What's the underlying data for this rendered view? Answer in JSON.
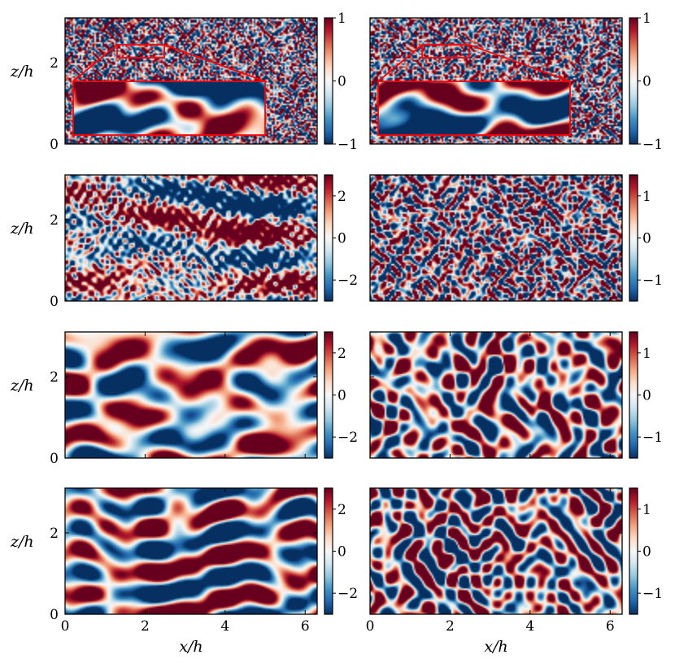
{
  "figure": {
    "ylabel": "z/h",
    "xlabel": "x/h",
    "x_ticks": [
      "0",
      "2",
      "4",
      "6"
    ],
    "z_ticks": [
      "0",
      "2"
    ],
    "cmap_colors": [
      "#053061",
      "#2166ac",
      "#4393c3",
      "#92c5de",
      "#d1e5f0",
      "#f7f7f7",
      "#fddbc7",
      "#f4a582",
      "#d6604d",
      "#b2182b",
      "#67001f"
    ],
    "inset_color": "#ff0000"
  },
  "chart_data": [
    {
      "type": "heatmap",
      "row": 1,
      "col": 1,
      "xlabel": "",
      "ylabel": "z/h",
      "xlim": [
        0,
        6.3
      ],
      "ylim": [
        0,
        3.1
      ],
      "x_ticks": [
        0,
        2,
        4,
        6
      ],
      "y_ticks": [
        0,
        2
      ],
      "clim": [
        -1,
        1
      ],
      "colorbar_ticks": [
        {
          "v": 1,
          "label": "1"
        },
        {
          "v": 0,
          "label": "0"
        },
        {
          "v": -1,
          "label": "−1"
        }
      ],
      "field": "fine-scale",
      "inset": true
    },
    {
      "type": "heatmap",
      "row": 1,
      "col": 2,
      "xlabel": "",
      "ylabel": "",
      "xlim": [
        0,
        6.3
      ],
      "ylim": [
        0,
        3.1
      ],
      "x_ticks": [
        0,
        2,
        4,
        6
      ],
      "y_ticks": [
        0,
        2
      ],
      "clim": [
        -1,
        1
      ],
      "colorbar_ticks": [
        {
          "v": 1,
          "label": "1"
        },
        {
          "v": 0,
          "label": "0"
        },
        {
          "v": -1,
          "label": "−1"
        }
      ],
      "field": "fine-scale",
      "inset": true
    },
    {
      "type": "heatmap",
      "row": 2,
      "col": 1,
      "xlabel": "",
      "ylabel": "z/h",
      "xlim": [
        0,
        6.3
      ],
      "ylim": [
        0,
        3.1
      ],
      "x_ticks": [
        0,
        2,
        4,
        6
      ],
      "y_ticks": [
        0,
        2
      ],
      "clim": [
        -3,
        3
      ],
      "colorbar_ticks": [
        {
          "v": 2,
          "label": "2"
        },
        {
          "v": 0,
          "label": "0"
        },
        {
          "v": -2,
          "label": "−2"
        }
      ],
      "field": "large-scale streaks"
    },
    {
      "type": "heatmap",
      "row": 2,
      "col": 2,
      "xlabel": "",
      "ylabel": "",
      "xlim": [
        0,
        6.3
      ],
      "ylim": [
        0,
        3.1
      ],
      "x_ticks": [
        0,
        2,
        4,
        6
      ],
      "y_ticks": [
        0,
        2
      ],
      "clim": [
        -1.5,
        1.5
      ],
      "colorbar_ticks": [
        {
          "v": 1,
          "label": "1"
        },
        {
          "v": 0,
          "label": "0"
        },
        {
          "v": -1,
          "label": "−1"
        }
      ],
      "field": "small-scale"
    },
    {
      "type": "heatmap",
      "row": 3,
      "col": 1,
      "xlabel": "",
      "ylabel": "z/h",
      "xlim": [
        0,
        6.3
      ],
      "ylim": [
        0,
        3.1
      ],
      "x_ticks": [
        0,
        2,
        4,
        6
      ],
      "y_ticks": [
        0,
        2
      ],
      "clim": [
        -3,
        3
      ],
      "colorbar_ticks": [
        {
          "v": 2,
          "label": "2"
        },
        {
          "v": 0,
          "label": "0"
        },
        {
          "v": -2,
          "label": "−2"
        }
      ],
      "field": "large-scale smooth"
    },
    {
      "type": "heatmap",
      "row": 3,
      "col": 2,
      "xlabel": "",
      "ylabel": "",
      "xlim": [
        0,
        6.3
      ],
      "ylim": [
        0,
        3.1
      ],
      "x_ticks": [
        0,
        2,
        4,
        6
      ],
      "y_ticks": [
        0,
        2
      ],
      "clim": [
        -1.5,
        1.5
      ],
      "colorbar_ticks": [
        {
          "v": 1,
          "label": "1"
        },
        {
          "v": 0,
          "label": "0"
        },
        {
          "v": -1,
          "label": "−1"
        }
      ],
      "field": "small-scale smooth"
    },
    {
      "type": "heatmap",
      "row": 4,
      "col": 1,
      "xlabel": "x/h",
      "ylabel": "z/h",
      "xlim": [
        0,
        6.3
      ],
      "ylim": [
        0,
        3.1
      ],
      "x_ticks": [
        0,
        2,
        4,
        6
      ],
      "y_ticks": [
        0,
        2
      ],
      "clim": [
        -3,
        3
      ],
      "colorbar_ticks": [
        {
          "v": 2,
          "label": "2"
        },
        {
          "v": 0,
          "label": "0"
        },
        {
          "v": -2,
          "label": "−2"
        }
      ],
      "field": "large-scale smooth"
    },
    {
      "type": "heatmap",
      "row": 4,
      "col": 2,
      "xlabel": "x/h",
      "ylabel": "",
      "xlim": [
        0,
        6.3
      ],
      "ylim": [
        0,
        3.1
      ],
      "x_ticks": [
        0,
        2,
        4,
        6
      ],
      "y_ticks": [
        0,
        2
      ],
      "clim": [
        -1.5,
        1.5
      ],
      "colorbar_ticks": [
        {
          "v": 1,
          "label": "1"
        },
        {
          "v": 0,
          "label": "0"
        },
        {
          "v": -1,
          "label": "−1"
        }
      ],
      "field": "small-scale smooth"
    }
  ]
}
